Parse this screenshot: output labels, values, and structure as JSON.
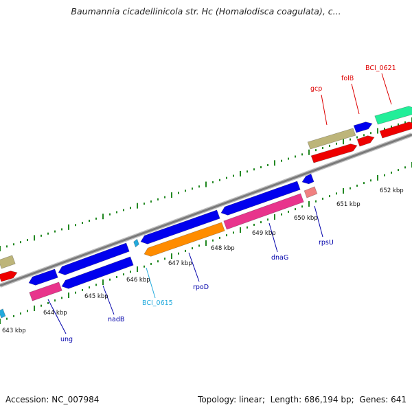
{
  "title": "Baumannia cicadellinicola str. Hc (Homalodisca coagulata), c...",
  "footer": {
    "accession_label": "Accession:",
    "accession": "NC_007984",
    "topology_label": "Topology:",
    "topology": "linear",
    "length_label": "Length:",
    "length": "686,194 bp",
    "genes_label": "Genes:",
    "genes": "641"
  },
  "scale_labels": [
    "643 kbp",
    "644 kbp",
    "645 kbp",
    "646 kbp",
    "647 kbp",
    "648 kbp",
    "649 kbp",
    "650 kbp",
    "651 kbp",
    "652 kbp"
  ],
  "gene_labels": [
    {
      "text": "gcp",
      "color": "#dd0000"
    },
    {
      "text": "folB",
      "color": "#dd0000"
    },
    {
      "text": "BCI_0621",
      "color": "#dd0000"
    },
    {
      "text": "ung",
      "color": "#0000aa"
    },
    {
      "text": "nadB",
      "color": "#0000aa"
    },
    {
      "text": "BCI_0615",
      "color": "#22aadd"
    },
    {
      "text": "rpoD",
      "color": "#0000aa"
    },
    {
      "text": "dnaG",
      "color": "#0000aa"
    },
    {
      "text": "rpsU",
      "color": "#0000aa"
    }
  ],
  "colors": {
    "backbone": "#7a7a7a",
    "tick": "#228822",
    "cds_blue": "#0000ee",
    "rrna_red": "#ee0000",
    "olive": "#bdb57a",
    "pink": "#e8348c",
    "orange": "#ff8c00",
    "green": "#22ee99",
    "salmon": "#f08080",
    "cyan": "#22aadd"
  }
}
